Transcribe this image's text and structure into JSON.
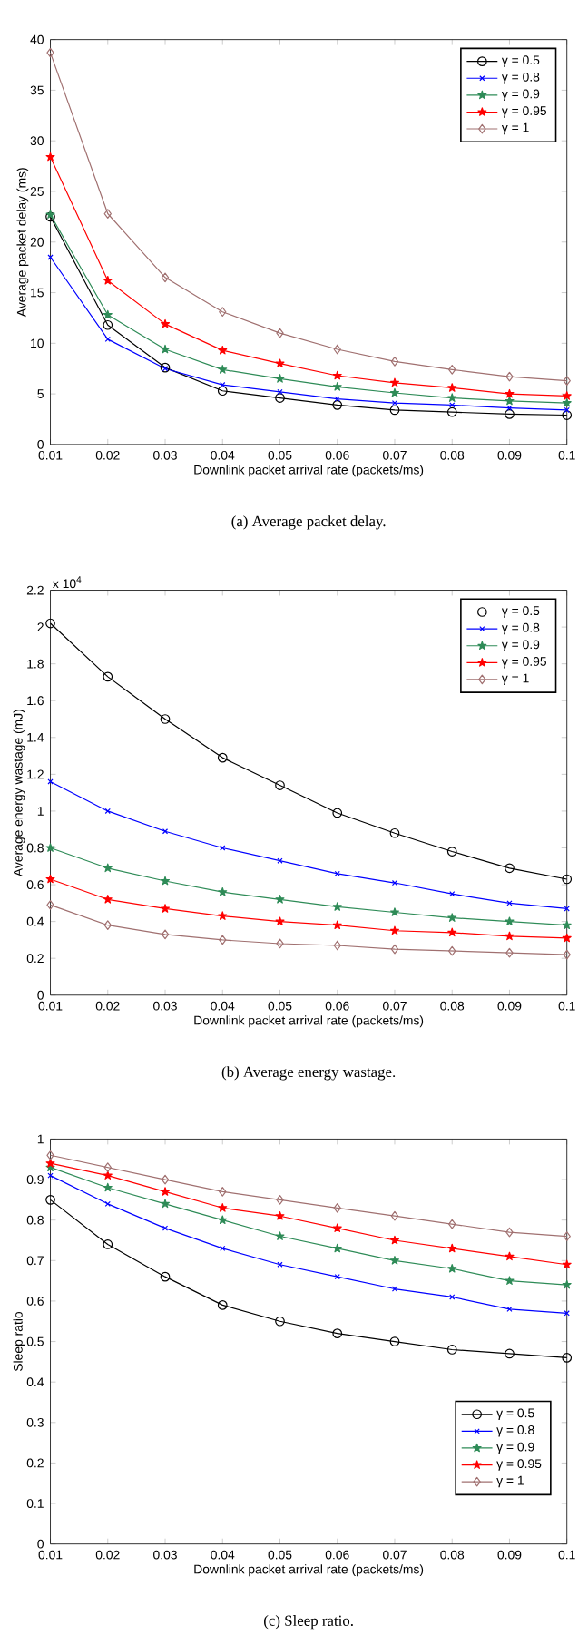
{
  "chart_data": [
    {
      "type": "line",
      "xlabel": "Downlink packet arrival rate (packets/ms)",
      "ylabel": "Average packet delay (ms)",
      "annotations": [
        "(a)  Average  packet  delay."
      ],
      "x": [
        0.01,
        0.02,
        0.03,
        0.04,
        0.05,
        0.06,
        0.07,
        0.08,
        0.09,
        0.1
      ],
      "xlim": [
        0.01,
        0.1
      ],
      "xticks": [
        0.01,
        0.02,
        0.03,
        0.04,
        0.05,
        0.06,
        0.07,
        0.08,
        0.09,
        0.1
      ],
      "ylim": [
        0,
        40
      ],
      "yticks": [
        0,
        5,
        10,
        15,
        20,
        25,
        30,
        35,
        40
      ],
      "legend": "top right",
      "line_style": "solid",
      "grid": false,
      "series": [
        {
          "name": "γ = 0.5",
          "color": "#000000",
          "marker": "circle",
          "values": [
            22.5,
            11.8,
            7.6,
            5.3,
            4.6,
            3.9,
            3.4,
            3.2,
            3.0,
            2.9
          ]
        },
        {
          "name": "γ = 0.8",
          "color": "#0000ff",
          "marker": "cross",
          "values": [
            18.5,
            10.4,
            7.5,
            5.9,
            5.2,
            4.5,
            4.1,
            3.9,
            3.6,
            3.4
          ]
        },
        {
          "name": "γ = 0.9",
          "color": "#2e8b57",
          "marker": "star",
          "values": [
            22.7,
            12.8,
            9.4,
            7.4,
            6.5,
            5.7,
            5.1,
            4.6,
            4.3,
            4.1
          ]
        },
        {
          "name": "γ = 0.95",
          "color": "#ff0000",
          "marker": "star",
          "values": [
            28.4,
            16.2,
            11.9,
            9.3,
            8.0,
            6.8,
            6.1,
            5.6,
            5.0,
            4.8
          ]
        },
        {
          "name": "γ = 1",
          "color": "#a07070",
          "marker": "diamond",
          "values": [
            38.7,
            22.8,
            16.5,
            13.1,
            11.0,
            9.4,
            8.2,
            7.4,
            6.7,
            6.3
          ]
        }
      ]
    },
    {
      "type": "line",
      "xlabel": "Downlink packet arrival rate (packets/ms)",
      "ylabel": "Average energy wastage (mJ)",
      "annotations": [
        "x 10$^{4}$",
        "(b)  Average  energy  wastage."
      ],
      "x": [
        0.01,
        0.02,
        0.03,
        0.04,
        0.05,
        0.06,
        0.07,
        0.08,
        0.09,
        0.1
      ],
      "xlim": [
        0.01,
        0.1
      ],
      "xticks": [
        0.01,
        0.02,
        0.03,
        0.04,
        0.05,
        0.06,
        0.07,
        0.08,
        0.09,
        0.1
      ],
      "ylim": [
        0,
        2.2
      ],
      "yticks": [
        0,
        0.2,
        0.4,
        0.6,
        0.8,
        1,
        1.2,
        1.4,
        1.6,
        1.8,
        2,
        2.2
      ],
      "legend": "top right",
      "line_style": "solid",
      "grid": false,
      "series": [
        {
          "name": "γ = 0.5",
          "color": "#000000",
          "marker": "circle",
          "values": [
            2.02,
            1.73,
            1.5,
            1.29,
            1.14,
            0.99,
            0.88,
            0.78,
            0.69,
            0.63
          ]
        },
        {
          "name": "γ = 0.8",
          "color": "#0000ff",
          "marker": "cross",
          "values": [
            1.16,
            1.0,
            0.89,
            0.8,
            0.73,
            0.66,
            0.61,
            0.55,
            0.5,
            0.47
          ]
        },
        {
          "name": "γ = 0.9",
          "color": "#2e8b57",
          "marker": "star",
          "values": [
            0.8,
            0.69,
            0.62,
            0.56,
            0.52,
            0.48,
            0.45,
            0.42,
            0.4,
            0.38
          ]
        },
        {
          "name": "γ = 0.95",
          "color": "#ff0000",
          "marker": "star",
          "values": [
            0.63,
            0.52,
            0.47,
            0.43,
            0.4,
            0.38,
            0.35,
            0.34,
            0.32,
            0.31
          ]
        },
        {
          "name": "γ = 1",
          "color": "#a07070",
          "marker": "diamond",
          "values": [
            0.49,
            0.38,
            0.33,
            0.3,
            0.28,
            0.27,
            0.25,
            0.24,
            0.23,
            0.22
          ]
        }
      ]
    },
    {
      "type": "line",
      "xlabel": "Downlink packet arrival rate (packets/ms)",
      "ylabel": "Sleep ratio",
      "annotations": [
        "(c)  Sleep  ratio."
      ],
      "x": [
        0.01,
        0.02,
        0.03,
        0.04,
        0.05,
        0.06,
        0.07,
        0.08,
        0.09,
        0.1
      ],
      "xlim": [
        0.01,
        0.1
      ],
      "xticks": [
        0.01,
        0.02,
        0.03,
        0.04,
        0.05,
        0.06,
        0.07,
        0.08,
        0.09,
        0.1
      ],
      "ylim": [
        0,
        1
      ],
      "yticks": [
        0,
        0.1,
        0.2,
        0.3,
        0.4,
        0.5,
        0.6,
        0.7,
        0.8,
        0.9,
        1
      ],
      "legend": "bottom right",
      "line_style": "solid",
      "grid": false,
      "series": [
        {
          "name": "γ = 0.5",
          "color": "#000000",
          "marker": "circle",
          "values": [
            0.85,
            0.74,
            0.66,
            0.59,
            0.55,
            0.52,
            0.5,
            0.48,
            0.47,
            0.46
          ]
        },
        {
          "name": "γ = 0.8",
          "color": "#0000ff",
          "marker": "cross",
          "values": [
            0.91,
            0.84,
            0.78,
            0.73,
            0.69,
            0.66,
            0.63,
            0.61,
            0.58,
            0.57
          ]
        },
        {
          "name": "γ = 0.9",
          "color": "#2e8b57",
          "marker": "star",
          "values": [
            0.93,
            0.88,
            0.84,
            0.8,
            0.76,
            0.73,
            0.7,
            0.68,
            0.65,
            0.64
          ]
        },
        {
          "name": "γ = 0.95",
          "color": "#ff0000",
          "marker": "star",
          "values": [
            0.94,
            0.91,
            0.87,
            0.83,
            0.81,
            0.78,
            0.75,
            0.73,
            0.71,
            0.69
          ]
        },
        {
          "name": "γ = 1",
          "color": "#a07070",
          "marker": "diamond",
          "values": [
            0.96,
            0.93,
            0.9,
            0.87,
            0.85,
            0.83,
            0.81,
            0.79,
            0.77,
            0.76
          ]
        }
      ]
    }
  ]
}
